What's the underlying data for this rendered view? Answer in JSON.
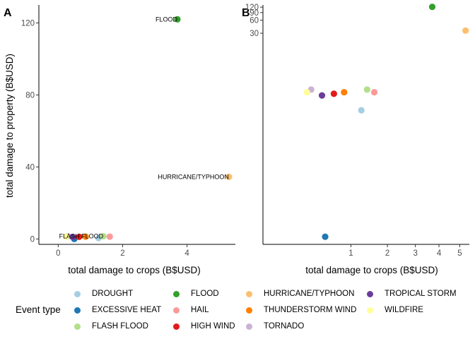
{
  "legend": {
    "title": "Event type",
    "entries": [
      {
        "name": "DROUGHT",
        "color": "#a6cee3"
      },
      {
        "name": "EXCESSIVE HEAT",
        "color": "#1f78b4"
      },
      {
        "name": "FLASH FLOOD",
        "color": "#b2df8a"
      },
      {
        "name": "FLOOD",
        "color": "#33a02c"
      },
      {
        "name": "HAIL",
        "color": "#fb9a99"
      },
      {
        "name": "HIGH WIND",
        "color": "#e31a1c"
      },
      {
        "name": "HURRICANE/TYPHOON",
        "color": "#fdbf6f"
      },
      {
        "name": "THUNDERSTORM WIND",
        "color": "#ff7f00"
      },
      {
        "name": "TORNADO",
        "color": "#cab2d6"
      },
      {
        "name": "TROPICAL STORM",
        "color": "#6a3d9a"
      },
      {
        "name": "WILDFIRE",
        "color": "#ffff99"
      }
    ]
  },
  "chart_data": [
    {
      "panel": "A",
      "type": "scatter",
      "xlabel": "total damage to crops (B$USD)",
      "ylabel": "total damage to property (B$USD)",
      "xscale": "linear",
      "yscale": "linear",
      "xlim": [
        -0.6,
        5.5
      ],
      "ylim": [
        -3,
        130
      ],
      "xticks": [
        0,
        2,
        4
      ],
      "yticks": [
        0,
        40,
        80,
        120
      ],
      "grid": false,
      "points": [
        {
          "event": "DROUGHT",
          "x": 1.25,
          "y": 0.5
        },
        {
          "event": "EXCESSIVE HEAT",
          "x": 0.5,
          "y": 0.0
        },
        {
          "event": "FLASH FLOOD",
          "x": 1.4,
          "y": 1.5,
          "label": "FLASH FLOOD"
        },
        {
          "event": "FLOOD",
          "x": 3.7,
          "y": 122,
          "label": "FLOOD"
        },
        {
          "event": "HAIL",
          "x": 1.6,
          "y": 1.3
        },
        {
          "event": "HIGH WIND",
          "x": 0.65,
          "y": 1.2
        },
        {
          "event": "HURRICANE/TYPHOON",
          "x": 5.3,
          "y": 34.5,
          "label": "HURRICANE/TYPHOON"
        },
        {
          "event": "THUNDERSTORM WIND",
          "x": 0.85,
          "y": 1.3
        },
        {
          "event": "TORNADO",
          "x": 0.3,
          "y": 1.5
        },
        {
          "event": "TROPICAL STORM",
          "x": 0.45,
          "y": 1.1
        },
        {
          "event": "WILDFIRE",
          "x": 0.25,
          "y": 1.3
        }
      ]
    },
    {
      "panel": "B",
      "type": "scatter",
      "xlabel": "total damage to crops (B$USD)",
      "ylabel": "",
      "xscale": "sqrt",
      "yscale": "log10",
      "xlim": [
        0.0,
        5.5
      ],
      "ylim": [
        0.0004,
        135
      ],
      "xticks": [
        1,
        2,
        3,
        4,
        5
      ],
      "yticks": [
        30,
        60,
        90,
        120
      ],
      "grid": false,
      "points": [
        {
          "event": "DROUGHT",
          "x": 1.25,
          "y": 0.5
        },
        {
          "event": "EXCESSIVE HEAT",
          "x": 0.5,
          "y": 0.0006
        },
        {
          "event": "FLASH FLOOD",
          "x": 1.4,
          "y": 1.5
        },
        {
          "event": "FLOOD",
          "x": 3.7,
          "y": 122
        },
        {
          "event": "HAIL",
          "x": 1.6,
          "y": 1.3
        },
        {
          "event": "HIGH WIND",
          "x": 0.65,
          "y": 1.2
        },
        {
          "event": "HURRICANE/TYPHOON",
          "x": 5.3,
          "y": 34.5
        },
        {
          "event": "THUNDERSTORM WIND",
          "x": 0.85,
          "y": 1.3
        },
        {
          "event": "TORNADO",
          "x": 0.3,
          "y": 1.5
        },
        {
          "event": "TROPICAL STORM",
          "x": 0.45,
          "y": 1.1
        },
        {
          "event": "WILDFIRE",
          "x": 0.25,
          "y": 1.3
        }
      ]
    }
  ]
}
